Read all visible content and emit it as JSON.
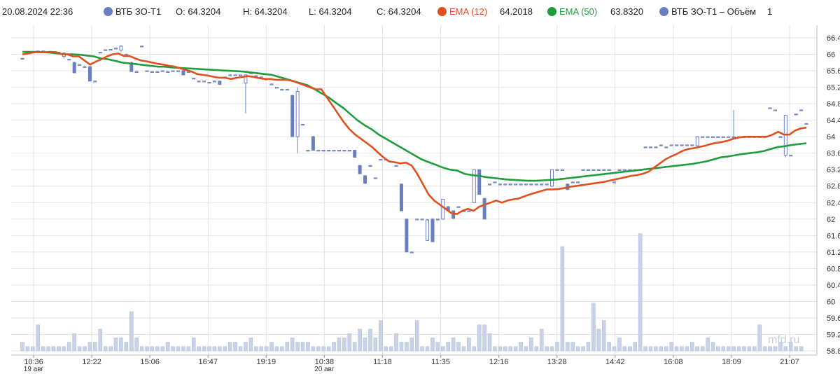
{
  "legend": {
    "datetime": "20.08.2024 22:36",
    "instrument": "ВТБ ЗО-Т1",
    "open": "O: 64.3204",
    "high": "H: 64.3204",
    "low": "L: 64.3204",
    "close": "C: 64.3204",
    "ema12_label": "EMA (12)",
    "ema12_value": "64.2018",
    "ema50_label": "EMA (50)",
    "ema50_value": "63.8320",
    "volume_label": "ВТБ ЗО-Т1 – Объём",
    "volume_value": "1"
  },
  "watermark": "mfd.ru",
  "colors": {
    "candle": "#6a7fc1",
    "ema12": "#e0501e",
    "ema50": "#1f9d3c",
    "volume": "#c9d3e8",
    "grid": "#e3e3e3"
  },
  "chart_data": {
    "type": "candlestick",
    "y_ticks": [
      "66.4",
      "66",
      "65.6",
      "65.2",
      "64.8",
      "64.4",
      "64",
      "63.6",
      "63.2",
      "62.8",
      "62.4",
      "62",
      "61.6",
      "61.2",
      "60.8",
      "60.4",
      "60",
      "59.6",
      "59.2",
      "58.8"
    ],
    "ylim": [
      58.8,
      66.4
    ],
    "x_ticks": [
      "10:36",
      "12:22",
      "15:06",
      "16:47",
      "19:19",
      "10:38",
      "11:18",
      "11:35",
      "12:16",
      "13:28",
      "14:42",
      "16:08",
      "18:09",
      "21:07"
    ],
    "day_labels": [
      {
        "label": "19 авг",
        "at": "10:36"
      },
      {
        "label": "20 авг",
        "at": "10:38"
      }
    ],
    "grid": true,
    "candles": [
      {
        "o": 65.9,
        "h": 65.92,
        "l": 65.88,
        "c": 65.9
      },
      {
        "o": 66.02,
        "h": 66.05,
        "l": 66.0,
        "c": 66.03
      },
      {
        "o": 66.05,
        "h": 66.06,
        "l": 66.04,
        "c": 66.05
      },
      {
        "o": 66.08,
        "h": 66.09,
        "l": 66.07,
        "c": 66.08
      },
      {
        "o": 66.08,
        "h": 66.09,
        "l": 66.07,
        "c": 66.08
      },
      {
        "o": 66.06,
        "h": 66.07,
        "l": 66.05,
        "c": 66.06
      },
      {
        "o": 66.05,
        "h": 66.06,
        "l": 66.04,
        "c": 66.05
      },
      {
        "o": 66.05,
        "h": 66.06,
        "l": 66.04,
        "c": 66.05
      },
      {
        "o": 65.95,
        "h": 66.05,
        "l": 65.9,
        "c": 66.03
      },
      {
        "o": 65.88,
        "h": 65.89,
        "l": 65.87,
        "c": 65.88
      },
      {
        "o": 65.8,
        "h": 65.82,
        "l": 65.55,
        "c": 65.55
      },
      {
        "o": 65.75,
        "h": 65.76,
        "l": 65.74,
        "c": 65.75
      },
      {
        "o": 65.7,
        "h": 65.72,
        "l": 65.68,
        "c": 65.7
      },
      {
        "o": 65.7,
        "h": 65.72,
        "l": 65.35,
        "c": 65.35
      },
      {
        "o": 65.35,
        "h": 65.36,
        "l": 65.34,
        "c": 65.35
      },
      {
        "o": 66.05,
        "h": 66.06,
        "l": 66.04,
        "c": 66.05
      },
      {
        "o": 66.1,
        "h": 66.12,
        "l": 66.09,
        "c": 66.11
      },
      {
        "o": 66.12,
        "h": 66.13,
        "l": 66.11,
        "c": 66.12
      },
      {
        "o": 66.15,
        "h": 66.16,
        "l": 66.14,
        "c": 66.15
      },
      {
        "o": 66.1,
        "h": 66.22,
        "l": 66.05,
        "c": 66.2
      },
      {
        "o": 66.0,
        "h": 66.02,
        "l": 65.95,
        "c": 66.0
      },
      {
        "o": 65.8,
        "h": 65.82,
        "l": 65.58,
        "c": 65.58
      },
      {
        "o": 65.58,
        "h": 65.6,
        "l": 65.55,
        "c": 65.58
      },
      {
        "o": 66.2,
        "h": 66.21,
        "l": 66.19,
        "c": 66.2
      },
      {
        "o": 65.6,
        "h": 65.61,
        "l": 65.59,
        "c": 65.6
      },
      {
        "o": 65.58,
        "h": 65.59,
        "l": 65.57,
        "c": 65.58
      },
      {
        "o": 65.58,
        "h": 65.59,
        "l": 65.57,
        "c": 65.58
      },
      {
        "o": 65.6,
        "h": 65.61,
        "l": 65.59,
        "c": 65.6
      },
      {
        "o": 65.58,
        "h": 65.59,
        "l": 65.57,
        "c": 65.58
      },
      {
        "o": 65.6,
        "h": 65.61,
        "l": 65.59,
        "c": 65.6
      },
      {
        "o": 65.6,
        "h": 65.61,
        "l": 65.59,
        "c": 65.6
      },
      {
        "o": 65.6,
        "h": 65.62,
        "l": 65.5,
        "c": 65.5
      },
      {
        "o": 65.58,
        "h": 65.59,
        "l": 65.57,
        "c": 65.58
      },
      {
        "o": 65.42,
        "h": 65.43,
        "l": 65.41,
        "c": 65.42
      },
      {
        "o": 65.35,
        "h": 65.36,
        "l": 65.34,
        "c": 65.35
      },
      {
        "o": 65.35,
        "h": 65.36,
        "l": 65.34,
        "c": 65.35
      },
      {
        "o": 65.32,
        "h": 65.33,
        "l": 65.31,
        "c": 65.32
      },
      {
        "o": 65.35,
        "h": 65.36,
        "l": 65.34,
        "c": 65.35
      },
      {
        "o": 65.35,
        "h": 65.36,
        "l": 65.25,
        "c": 65.27
      },
      {
        "o": 65.45,
        "h": 65.46,
        "l": 65.44,
        "c": 65.45
      },
      {
        "o": 65.5,
        "h": 65.51,
        "l": 65.49,
        "c": 65.5
      },
      {
        "o": 65.5,
        "h": 65.51,
        "l": 65.49,
        "c": 65.5
      },
      {
        "o": 65.5,
        "h": 65.51,
        "l": 65.49,
        "c": 65.5
      },
      {
        "o": 65.3,
        "h": 65.52,
        "l": 64.56,
        "c": 65.5
      },
      {
        "o": 65.55,
        "h": 65.56,
        "l": 65.54,
        "c": 65.55
      },
      {
        "o": 65.48,
        "h": 65.49,
        "l": 65.47,
        "c": 65.48
      },
      {
        "o": 65.45,
        "h": 65.46,
        "l": 65.44,
        "c": 65.45
      },
      {
        "o": 65.4,
        "h": 65.41,
        "l": 65.39,
        "c": 65.4
      },
      {
        "o": 65.28,
        "h": 65.29,
        "l": 65.27,
        "c": 65.28
      },
      {
        "o": 65.2,
        "h": 65.21,
        "l": 65.19,
        "c": 65.2
      },
      {
        "o": 65.15,
        "h": 65.16,
        "l": 65.14,
        "c": 65.15
      },
      {
        "o": 65.15,
        "h": 65.16,
        "l": 65.14,
        "c": 65.15
      },
      {
        "o": 65.0,
        "h": 65.02,
        "l": 64.0,
        "c": 64.0
      },
      {
        "o": 64.0,
        "h": 65.2,
        "l": 63.6,
        "c": 65.1
      },
      {
        "o": 64.3,
        "h": 64.31,
        "l": 64.29,
        "c": 64.3
      },
      {
        "o": 63.67,
        "h": 63.68,
        "l": 63.66,
        "c": 63.67
      },
      {
        "o": 64.0,
        "h": 64.02,
        "l": 63.66,
        "c": 63.67
      },
      {
        "o": 63.67,
        "h": 63.68,
        "l": 63.66,
        "c": 63.67
      },
      {
        "o": 63.67,
        "h": 63.68,
        "l": 63.66,
        "c": 63.67
      },
      {
        "o": 63.67,
        "h": 63.68,
        "l": 63.66,
        "c": 63.67
      },
      {
        "o": 63.67,
        "h": 63.68,
        "l": 63.66,
        "c": 63.67
      },
      {
        "o": 63.67,
        "h": 63.68,
        "l": 63.66,
        "c": 63.67
      },
      {
        "o": 63.67,
        "h": 63.68,
        "l": 63.66,
        "c": 63.67
      },
      {
        "o": 63.67,
        "h": 63.68,
        "l": 63.66,
        "c": 63.67
      },
      {
        "o": 63.67,
        "h": 63.68,
        "l": 63.5,
        "c": 63.5
      },
      {
        "o": 63.3,
        "h": 63.32,
        "l": 63.1,
        "c": 63.1
      },
      {
        "o": 63.05,
        "h": 63.07,
        "l": 62.85,
        "c": 62.87
      },
      {
        "o": 63.3,
        "h": 63.31,
        "l": 63.29,
        "c": 63.3
      },
      {
        "o": 63.0,
        "h": 63.01,
        "l": 62.99,
        "c": 63.0
      },
      {
        "o": 63.45,
        "h": 63.46,
        "l": 63.44,
        "c": 63.45
      },
      {
        "o": 63.45,
        "h": 63.46,
        "l": 63.44,
        "c": 63.45
      },
      {
        "o": 63.4,
        "h": 63.41,
        "l": 63.39,
        "c": 63.4
      },
      {
        "o": 63.3,
        "h": 63.31,
        "l": 63.29,
        "c": 63.3
      },
      {
        "o": 62.85,
        "h": 62.86,
        "l": 62.2,
        "c": 62.2
      },
      {
        "o": 62.0,
        "h": 62.01,
        "l": 61.2,
        "c": 61.2
      },
      {
        "o": 61.2,
        "h": 61.21,
        "l": 61.19,
        "c": 61.2
      },
      {
        "o": 62.0,
        "h": 62.01,
        "l": 61.99,
        "c": 62.0
      },
      {
        "o": 62.0,
        "h": 62.01,
        "l": 61.99,
        "c": 62.0
      },
      {
        "o": 61.48,
        "h": 62.0,
        "l": 61.48,
        "c": 61.98
      },
      {
        "o": 62.0,
        "h": 62.02,
        "l": 61.45,
        "c": 61.45
      },
      {
        "o": 61.98,
        "h": 62.0,
        "l": 61.96,
        "c": 62.0
      },
      {
        "o": 62.0,
        "h": 62.48,
        "l": 61.98,
        "c": 62.48
      },
      {
        "o": 62.3,
        "h": 62.32,
        "l": 62.2,
        "c": 62.2
      },
      {
        "o": 62.2,
        "h": 62.21,
        "l": 62.0,
        "c": 62.02
      },
      {
        "o": 62.3,
        "h": 62.31,
        "l": 62.29,
        "c": 62.3
      },
      {
        "o": 62.2,
        "h": 62.21,
        "l": 62.19,
        "c": 62.2
      },
      {
        "o": 62.2,
        "h": 62.21,
        "l": 62.19,
        "c": 62.2
      },
      {
        "o": 62.4,
        "h": 63.2,
        "l": 62.4,
        "c": 63.2
      },
      {
        "o": 63.2,
        "h": 63.21,
        "l": 62.6,
        "c": 62.6
      },
      {
        "o": 62.5,
        "h": 62.52,
        "l": 62.0,
        "c": 62.0
      },
      {
        "o": 62.85,
        "h": 62.86,
        "l": 62.84,
        "c": 62.85
      },
      {
        "o": 62.9,
        "h": 62.91,
        "l": 62.89,
        "c": 62.9
      },
      {
        "o": 62.85,
        "h": 62.86,
        "l": 62.84,
        "c": 62.85
      },
      {
        "o": 62.85,
        "h": 62.86,
        "l": 62.84,
        "c": 62.85
      },
      {
        "o": 62.85,
        "h": 62.86,
        "l": 62.84,
        "c": 62.85
      },
      {
        "o": 62.85,
        "h": 62.86,
        "l": 62.84,
        "c": 62.85
      },
      {
        "o": 62.85,
        "h": 62.86,
        "l": 62.84,
        "c": 62.85
      },
      {
        "o": 62.85,
        "h": 62.86,
        "l": 62.84,
        "c": 62.85
      },
      {
        "o": 62.85,
        "h": 62.86,
        "l": 62.84,
        "c": 62.85
      },
      {
        "o": 62.85,
        "h": 62.86,
        "l": 62.84,
        "c": 62.85
      },
      {
        "o": 62.85,
        "h": 62.86,
        "l": 62.84,
        "c": 62.85
      },
      {
        "o": 62.85,
        "h": 62.86,
        "l": 62.84,
        "c": 62.85
      },
      {
        "o": 62.8,
        "h": 63.2,
        "l": 62.78,
        "c": 63.2
      },
      {
        "o": 63.2,
        "h": 63.21,
        "l": 63.19,
        "c": 63.2
      },
      {
        "o": 63.2,
        "h": 63.21,
        "l": 63.19,
        "c": 63.2
      },
      {
        "o": 62.85,
        "h": 62.86,
        "l": 62.7,
        "c": 62.72
      },
      {
        "o": 62.9,
        "h": 62.91,
        "l": 62.89,
        "c": 62.9
      },
      {
        "o": 62.9,
        "h": 62.91,
        "l": 62.89,
        "c": 62.9
      },
      {
        "o": 63.2,
        "h": 63.21,
        "l": 63.19,
        "c": 63.2
      },
      {
        "o": 63.2,
        "h": 63.21,
        "l": 63.19,
        "c": 63.2
      },
      {
        "o": 63.2,
        "h": 63.21,
        "l": 63.19,
        "c": 63.2
      },
      {
        "o": 63.2,
        "h": 63.21,
        "l": 63.19,
        "c": 63.2
      },
      {
        "o": 63.2,
        "h": 63.21,
        "l": 63.19,
        "c": 63.2
      },
      {
        "o": 63.2,
        "h": 63.21,
        "l": 63.19,
        "c": 63.2
      },
      {
        "o": 62.9,
        "h": 62.91,
        "l": 62.89,
        "c": 62.9
      },
      {
        "o": 63.2,
        "h": 63.21,
        "l": 63.19,
        "c": 63.2
      },
      {
        "o": 63.2,
        "h": 63.21,
        "l": 63.19,
        "c": 63.2
      },
      {
        "o": 63.2,
        "h": 63.21,
        "l": 63.19,
        "c": 63.2
      },
      {
        "o": 63.2,
        "h": 63.21,
        "l": 63.19,
        "c": 63.2
      },
      {
        "o": 63.2,
        "h": 63.21,
        "l": 63.19,
        "c": 63.2
      },
      {
        "o": 63.75,
        "h": 63.76,
        "l": 63.74,
        "c": 63.75
      },
      {
        "o": 63.75,
        "h": 63.76,
        "l": 63.74,
        "c": 63.75
      },
      {
        "o": 63.75,
        "h": 63.76,
        "l": 63.74,
        "c": 63.75
      },
      {
        "o": 63.8,
        "h": 63.81,
        "l": 63.79,
        "c": 63.8
      },
      {
        "o": 63.75,
        "h": 63.76,
        "l": 63.74,
        "c": 63.75
      },
      {
        "o": 63.8,
        "h": 63.81,
        "l": 63.79,
        "c": 63.8
      },
      {
        "o": 63.8,
        "h": 63.81,
        "l": 63.79,
        "c": 63.8
      },
      {
        "o": 63.8,
        "h": 63.81,
        "l": 63.79,
        "c": 63.8
      },
      {
        "o": 63.8,
        "h": 63.81,
        "l": 63.79,
        "c": 63.8
      },
      {
        "o": 63.8,
        "h": 63.81,
        "l": 63.79,
        "c": 63.8
      },
      {
        "o": 63.78,
        "h": 64.02,
        "l": 63.76,
        "c": 64.0
      },
      {
        "o": 64.0,
        "h": 64.01,
        "l": 63.99,
        "c": 64.0
      },
      {
        "o": 64.0,
        "h": 64.01,
        "l": 63.99,
        "c": 64.0
      },
      {
        "o": 64.0,
        "h": 64.01,
        "l": 63.99,
        "c": 64.0
      },
      {
        "o": 64.0,
        "h": 64.01,
        "l": 63.99,
        "c": 64.0
      },
      {
        "o": 64.0,
        "h": 64.01,
        "l": 63.99,
        "c": 64.0
      },
      {
        "o": 64.0,
        "h": 64.01,
        "l": 63.99,
        "c": 64.0
      },
      {
        "o": 64.0,
        "h": 64.65,
        "l": 63.99,
        "c": 64.0
      },
      {
        "o": 64.0,
        "h": 64.01,
        "l": 63.99,
        "c": 64.0
      },
      {
        "o": 64.0,
        "h": 64.01,
        "l": 63.99,
        "c": 64.0
      },
      {
        "o": 64.0,
        "h": 64.01,
        "l": 63.99,
        "c": 64.0
      },
      {
        "o": 64.0,
        "h": 64.01,
        "l": 63.99,
        "c": 64.0
      },
      {
        "o": 64.0,
        "h": 64.01,
        "l": 63.99,
        "c": 64.0
      },
      {
        "o": 64.0,
        "h": 64.01,
        "l": 63.99,
        "c": 64.0
      },
      {
        "o": 64.7,
        "h": 64.71,
        "l": 64.69,
        "c": 64.7
      },
      {
        "o": 64.65,
        "h": 64.66,
        "l": 64.64,
        "c": 64.65
      },
      {
        "o": 64.0,
        "h": 64.02,
        "l": 63.98,
        "c": 64.0
      },
      {
        "o": 63.55,
        "h": 64.52,
        "l": 63.5,
        "c": 64.52
      },
      {
        "o": 63.55,
        "h": 63.56,
        "l": 63.54,
        "c": 63.55
      },
      {
        "o": 64.55,
        "h": 64.56,
        "l": 64.54,
        "c": 64.55
      },
      {
        "o": 64.65,
        "h": 64.66,
        "l": 64.64,
        "c": 64.65
      },
      {
        "o": 64.32,
        "h": 64.33,
        "l": 64.31,
        "c": 64.32
      }
    ],
    "ema12": [
      66.0,
      66.02,
      66.05,
      66.05,
      66.05,
      66.06,
      66.05,
      66.0,
      66.0,
      65.95,
      65.95,
      65.85,
      65.75,
      65.82,
      65.88,
      65.95,
      66.0,
      66.02,
      65.96,
      65.96,
      65.9,
      65.85,
      65.83,
      65.8,
      65.77,
      65.75,
      65.72,
      65.7,
      65.66,
      65.62,
      65.58,
      65.52,
      65.5,
      65.48,
      65.45,
      65.43,
      65.43,
      65.4,
      65.43,
      65.45,
      65.47,
      65.45,
      65.42,
      65.4,
      65.4,
      65.38,
      65.38,
      65.38,
      65.35,
      65.3,
      65.25,
      65.2,
      65.15,
      65.15,
      64.95,
      64.75,
      64.55,
      64.35,
      64.18,
      64.05,
      63.95,
      63.85,
      63.75,
      63.62,
      63.5,
      63.4,
      63.38,
      63.35,
      63.37,
      63.3,
      63.1,
      62.85,
      62.6,
      62.45,
      62.35,
      62.25,
      62.15,
      62.12,
      62.2,
      62.25,
      62.2,
      62.3,
      62.35,
      62.4,
      62.45,
      62.4,
      62.45,
      62.48,
      62.5,
      62.55,
      62.6,
      62.64,
      62.68,
      62.72,
      62.72,
      62.73,
      62.75,
      62.78,
      62.8,
      62.82,
      62.84,
      62.86,
      62.88,
      62.9,
      62.93,
      62.96,
      62.99,
      63.02,
      63.05,
      63.07,
      63.1,
      63.15,
      63.25,
      63.35,
      63.45,
      63.52,
      63.58,
      63.65,
      63.7,
      63.72,
      63.75,
      63.78,
      63.82,
      63.85,
      63.87,
      63.9,
      63.95,
      63.98,
      64.0,
      64.0,
      64.0,
      64.0,
      64.0,
      64.05,
      64.12,
      64.05,
      64.05,
      64.15,
      64.2,
      64.22
    ],
    "ema50": [
      66.06,
      66.06,
      66.06,
      66.05,
      66.04,
      66.02,
      66.0,
      66.0,
      65.99,
      65.97,
      65.95,
      65.9,
      65.88,
      65.84,
      65.8,
      65.78,
      65.76,
      65.74,
      65.72,
      65.7,
      65.7,
      65.68,
      65.67,
      65.66,
      65.65,
      65.64,
      65.63,
      65.62,
      65.61,
      65.6,
      65.59,
      65.58,
      65.56,
      65.54,
      65.52,
      65.5,
      65.45,
      65.4,
      65.35,
      65.3,
      65.25,
      65.15,
      65.05,
      64.95,
      64.82,
      64.7,
      64.55,
      64.4,
      64.28,
      64.18,
      64.05,
      63.95,
      63.85,
      63.75,
      63.65,
      63.55,
      63.45,
      63.38,
      63.32,
      63.25,
      63.2,
      63.18,
      63.1,
      63.07,
      63.05,
      63.02,
      63.0,
      62.98,
      62.96,
      62.95,
      62.94,
      62.93,
      62.93,
      62.94,
      62.95,
      62.96,
      62.98,
      63.0,
      63.02,
      63.04,
      63.06,
      63.08,
      63.1,
      63.12,
      63.14,
      63.16,
      63.18,
      63.2,
      63.22,
      63.24,
      63.26,
      63.28,
      63.3,
      63.32,
      63.34,
      63.37,
      63.4,
      63.45,
      63.5,
      63.52,
      63.55,
      63.58,
      63.6,
      63.62,
      63.65,
      63.7,
      63.75,
      63.77,
      63.8,
      63.82,
      63.84
    ]
  }
}
